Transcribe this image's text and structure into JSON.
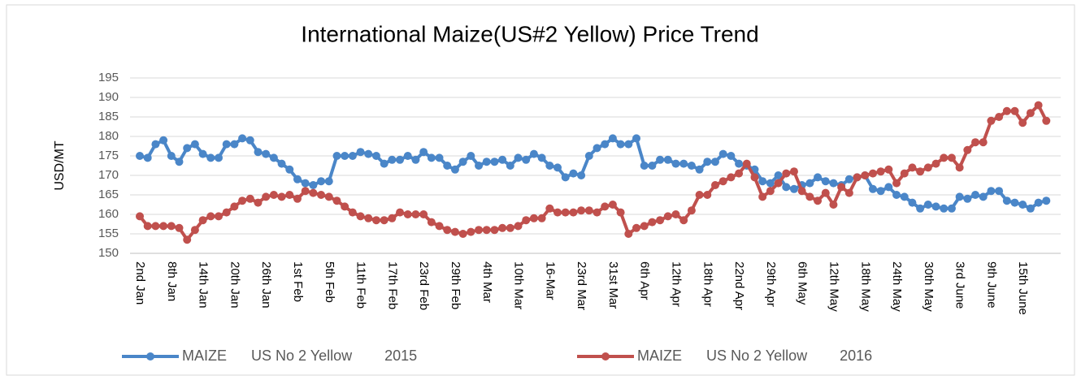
{
  "chart_data": {
    "type": "line",
    "title": "International Maize(US#2 Yellow) Price Trend",
    "y_label": "USD/MT",
    "categories": [
      "2nd Jan",
      null,
      null,
      null,
      "8th Jan",
      null,
      null,
      null,
      "14th Jan",
      null,
      null,
      null,
      "20th Jan",
      null,
      null,
      null,
      "26th Jan",
      null,
      null,
      null,
      "1st Feb",
      null,
      null,
      null,
      "5th Feb",
      null,
      null,
      null,
      "11th Feb",
      null,
      null,
      null,
      "17th Feb",
      null,
      null,
      null,
      "23rd Feb",
      null,
      null,
      null,
      "29th Feb",
      null,
      null,
      null,
      "4th Mar",
      null,
      null,
      null,
      "10th Mar",
      null,
      null,
      null,
      "16-Mar",
      null,
      null,
      null,
      "23rd Mar",
      null,
      null,
      null,
      "31st Mar",
      null,
      null,
      null,
      "6th Apr",
      null,
      null,
      null,
      "12th Apr",
      null,
      null,
      null,
      "18th Apr",
      null,
      null,
      null,
      "22nd Apr",
      null,
      null,
      null,
      "29th Apr",
      null,
      null,
      null,
      "6th May",
      null,
      null,
      null,
      "12th May",
      null,
      null,
      null,
      "18th May",
      null,
      null,
      null,
      "24th May",
      null,
      null,
      null,
      "30th May",
      null,
      null,
      null,
      "3rd June",
      null,
      null,
      null,
      "9th June",
      null,
      null,
      null,
      "15th June",
      null,
      null,
      null
    ],
    "series": [
      {
        "name": "MAIZE      US No 2 Yellow        2015",
        "color": "#4a86c8",
        "values": [
          175,
          174.5,
          178,
          179,
          175,
          173.5,
          177,
          178,
          175.5,
          174.5,
          174.5,
          178,
          178,
          179.5,
          179,
          176,
          175.5,
          174.5,
          173,
          171.5,
          169,
          168,
          167.5,
          168.5,
          168.5,
          175,
          175,
          175,
          176,
          175.5,
          175,
          173,
          174,
          174,
          175,
          174,
          176,
          174.5,
          174.5,
          172.5,
          171.5,
          173.5,
          175,
          172.5,
          173.5,
          173.5,
          174,
          172.5,
          174.5,
          174,
          175.5,
          174.5,
          172.5,
          172,
          169.5,
          170.5,
          170,
          175,
          177,
          178,
          179.5,
          178,
          178,
          179.5,
          172.5,
          172.5,
          174,
          174,
          173,
          173,
          172.5,
          171.5,
          173.5,
          173.5,
          175.5,
          175,
          173,
          172.5,
          171.5,
          168.5,
          168,
          170,
          167,
          166.5,
          167.5,
          168,
          169.5,
          168.5,
          168,
          167.5,
          169,
          169.5,
          170,
          166.5,
          166,
          167,
          165,
          164.5,
          163,
          161.5,
          162.5,
          162,
          161.5,
          161.5,
          164.5,
          164,
          165,
          164.5,
          166,
          166,
          163.5,
          163,
          162.5,
          161.5,
          163,
          163.5
        ]
      },
      {
        "name": "MAIZE      US No 2 Yellow        2016",
        "color": "#c0504d",
        "values": [
          159.5,
          157,
          157,
          157,
          157,
          156.5,
          153.5,
          156,
          158.5,
          159.5,
          159.5,
          160.5,
          162,
          163.5,
          164,
          163,
          164.5,
          165,
          164.5,
          165,
          164,
          166,
          165.5,
          165,
          164.5,
          163.5,
          162,
          160.5,
          159.5,
          159,
          158.5,
          158.5,
          159,
          160.5,
          160,
          160,
          160,
          158,
          157,
          156,
          155.5,
          155,
          155.5,
          156,
          156,
          156,
          156.5,
          156.5,
          157,
          158.5,
          159,
          159,
          161.5,
          160.5,
          160.5,
          160.5,
          161,
          161,
          160.5,
          162,
          162.5,
          160.5,
          155,
          156.5,
          157,
          158,
          158.5,
          159.5,
          160,
          158.5,
          161,
          165,
          165,
          167.5,
          168.5,
          169.5,
          170.5,
          173,
          169.5,
          164.5,
          166,
          168,
          170.5,
          171,
          166,
          164.5,
          163.5,
          165.5,
          162.5,
          167,
          165.5,
          169.5,
          170,
          170.5,
          171,
          171.5,
          168,
          170.5,
          172,
          171,
          172,
          173,
          174.5,
          174.5,
          172,
          176.5,
          178.5,
          178.5,
          184,
          185,
          186.5,
          186.5,
          183.5,
          186,
          188,
          184
        ]
      }
    ],
    "ylim": [
      150,
      195
    ],
    "yticks": [
      150,
      155,
      160,
      165,
      170,
      175,
      180,
      185,
      190,
      195
    ],
    "grid": true,
    "legend": "bottom"
  }
}
